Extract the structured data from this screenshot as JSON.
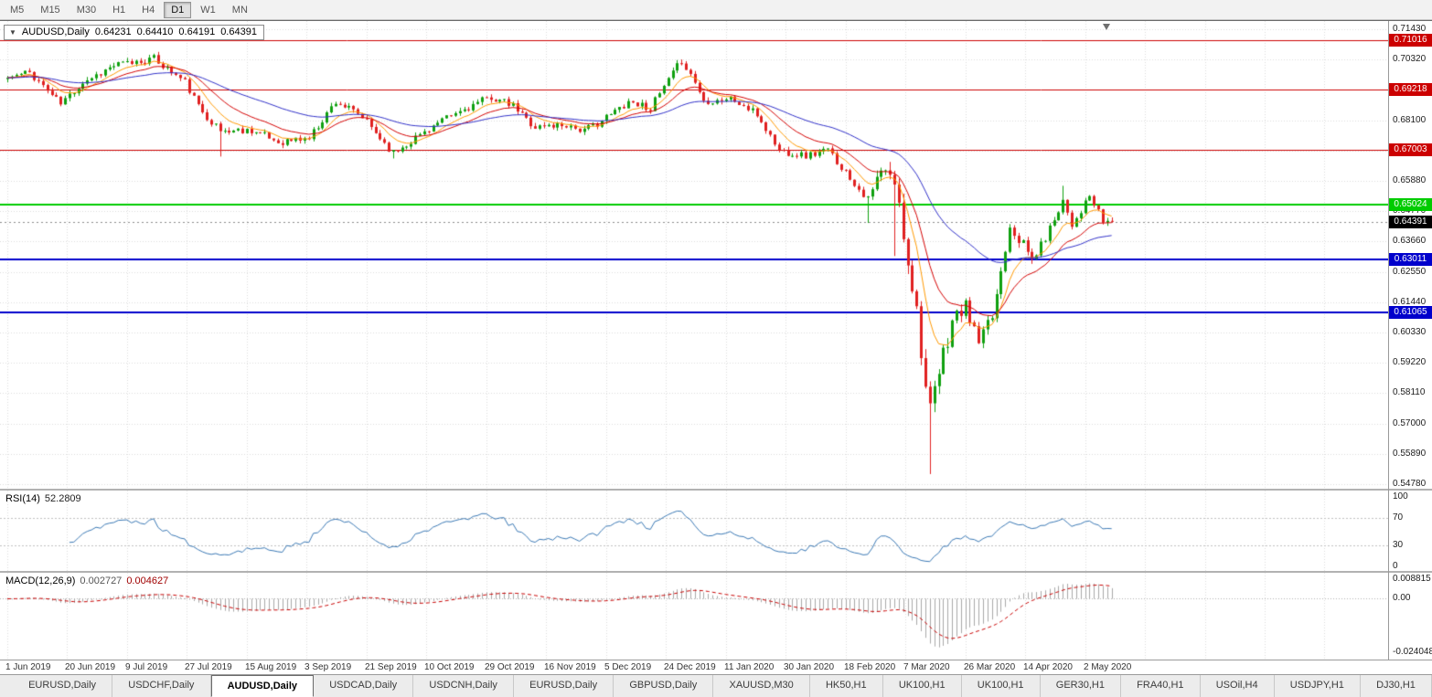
{
  "toolbar": {
    "timeframes": [
      "M5",
      "M15",
      "M30",
      "H1",
      "H4",
      "D1",
      "W1",
      "MN"
    ],
    "active": "D1"
  },
  "chart": {
    "symbol_period": "AUDUSD,Daily",
    "open": "0.64231",
    "high": "0.64410",
    "low": "0.64191",
    "close": "0.64391",
    "dropdown_icon": "▼"
  },
  "price_axis": {
    "prices": [
      0.7143,
      0.7032,
      0.6921,
      0.681,
      0.6699,
      0.6588,
      0.6477,
      0.6366,
      0.6255,
      0.6144,
      0.6033,
      0.5922,
      0.5811,
      0.57,
      0.5589,
      0.5478
    ]
  },
  "hlines": [
    {
      "price": 0.71016,
      "color": "#cc0000",
      "width": 1
    },
    {
      "price": 0.69218,
      "color": "#cc0000",
      "width": 1
    },
    {
      "price": 0.67003,
      "color": "#cc0000",
      "width": 1
    },
    {
      "price": 0.65024,
      "color": "#00cc00",
      "width": 2
    },
    {
      "price": 0.63011,
      "color": "#0000cc",
      "width": 2
    },
    {
      "price": 0.61065,
      "color": "#0000cc",
      "width": 2
    }
  ],
  "current_price": {
    "value": 0.64391,
    "badge_color": "#000000"
  },
  "rsi": {
    "name": "RSI(14)",
    "value": "52.2809",
    "axis_labels": [
      100,
      70,
      30,
      0
    ],
    "levels": [
      70,
      30
    ],
    "line_color": "#3a78b4"
  },
  "macd": {
    "name": "MACD(12,26,9)",
    "value_main": "0.002727",
    "value_signal": "0.004627",
    "axis_top": "0.008815",
    "axis_zero": "0.00",
    "axis_bottom": "-0.0240482",
    "histogram_color": "#a8a8a8",
    "signal_color": "#c80000"
  },
  "time_axis": {
    "labels": [
      "1 Jun 2019",
      "20 Jun 2019",
      "9 Jul 2019",
      "27 Jul 2019",
      "15 Aug 2019",
      "3 Sep 2019",
      "21 Sep 2019",
      "10 Oct 2019",
      "29 Oct 2019",
      "16 Nov 2019",
      "5 Dec 2019",
      "24 Dec 2019",
      "11 Jan 2020",
      "30 Jan 2020",
      "18 Feb 2020",
      "7 Mar 2020",
      "26 Mar 2020",
      "14 Apr 2020",
      "2 May 2020"
    ]
  },
  "tabs": {
    "active_index": 2,
    "items": [
      "EURUSD,Daily",
      "USDCHF,Daily",
      "AUDUSD,Daily",
      "USDCAD,Daily",
      "USDCNH,Daily",
      "EURUSD,Daily",
      "GBPUSD,Daily",
      "XAUUSD,M30",
      "HK50,H1",
      "UK100,H1",
      "UK100,H1",
      "GER30,H1",
      "FRA40,H1",
      "USOil,H4",
      "USDJPY,H1",
      "DJ30,H1"
    ]
  },
  "chart_data": {
    "type": "candlestick",
    "symbol": "AUDUSD",
    "timeframe": "Daily",
    "count": 250,
    "seed": 11,
    "noise": 0.0014,
    "wick": 0.0013,
    "price_window": {
      "max": 0.7173,
      "min": 0.54613
    },
    "up_color": "#0fa00f",
    "down_color": "#e02020",
    "ma_lines": [
      {
        "period": 8,
        "color": "#ff9900"
      },
      {
        "period": 17,
        "color": "#d40000"
      },
      {
        "period": 45,
        "color": "#3030c8"
      }
    ],
    "anchors": [
      [
        0,
        0.6965
      ],
      [
        5,
        0.6985
      ],
      [
        12,
        0.687
      ],
      [
        17,
        0.695
      ],
      [
        24,
        0.701
      ],
      [
        33,
        0.7035
      ],
      [
        40,
        0.695
      ],
      [
        43,
        0.686
      ],
      [
        48,
        0.677
      ],
      [
        55,
        0.6775
      ],
      [
        61,
        0.673
      ],
      [
        68,
        0.6745
      ],
      [
        74,
        0.688
      ],
      [
        80,
        0.682
      ],
      [
        87,
        0.669
      ],
      [
        95,
        0.678
      ],
      [
        103,
        0.685
      ],
      [
        109,
        0.6895
      ],
      [
        114,
        0.686
      ],
      [
        119,
        0.6785
      ],
      [
        126,
        0.6795
      ],
      [
        130,
        0.677
      ],
      [
        136,
        0.683
      ],
      [
        140,
        0.688
      ],
      [
        145,
        0.6855
      ],
      [
        148,
        0.693
      ],
      [
        152,
        0.703
      ],
      [
        155,
        0.695
      ],
      [
        157,
        0.688
      ],
      [
        163,
        0.689
      ],
      [
        169,
        0.683
      ],
      [
        174,
        0.67
      ],
      [
        180,
        0.668
      ],
      [
        185,
        0.67
      ],
      [
        189,
        0.662
      ],
      [
        194,
        0.652
      ],
      [
        197,
        0.662
      ],
      [
        200,
        0.6583
      ],
      [
        203,
        0.63
      ],
      [
        205,
        0.612
      ],
      [
        207,
        0.583
      ],
      [
        208,
        0.574
      ],
      [
        209,
        0.581
      ],
      [
        211,
        0.595
      ],
      [
        213,
        0.6075
      ],
      [
        216,
        0.613
      ],
      [
        219,
        0.5995
      ],
      [
        222,
        0.609
      ],
      [
        226,
        0.643
      ],
      [
        231,
        0.63
      ],
      [
        234,
        0.638
      ],
      [
        238,
        0.652
      ],
      [
        240,
        0.643
      ],
      [
        244,
        0.653
      ],
      [
        247,
        0.644
      ],
      [
        249,
        0.64391
      ]
    ],
    "specials": [
      {
        "i": 33,
        "high": 0.7045
      },
      {
        "i": 48,
        "low": 0.6677
      },
      {
        "i": 87,
        "low": 0.667
      },
      {
        "i": 152,
        "high": 0.7032
      },
      {
        "i": 194,
        "low": 0.6434
      },
      {
        "i": 200,
        "low": 0.6313
      },
      {
        "i": 208,
        "low": 0.5515
      },
      {
        "i": 238,
        "high": 0.657
      }
    ],
    "vol_zones": [
      {
        "from": 196,
        "to": 216,
        "mult": 2.6
      },
      {
        "from": 216,
        "to": 232,
        "mult": 1.5
      }
    ]
  }
}
